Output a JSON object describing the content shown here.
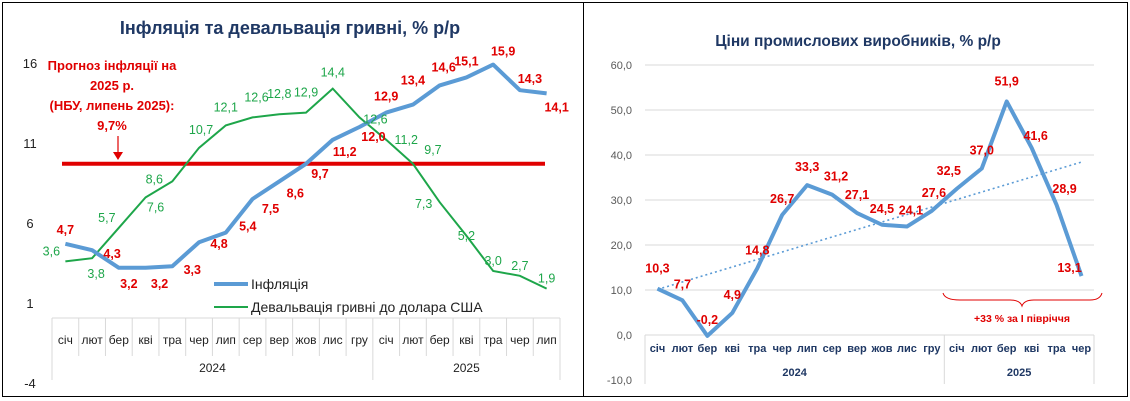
{
  "charts_meta": {
    "inflation_color": "#5b9bd5",
    "devaluation_color": "#1ea64a",
    "forecast_color": "#e00000",
    "label_color": "#e00000",
    "title_color": "#1f3864"
  },
  "chart_data": [
    {
      "type": "line",
      "title": "Інфляція та девальвація гривні, % р/р",
      "years": [
        "2024",
        "2025"
      ],
      "categories": [
        "січ",
        "лют",
        "бер",
        "кві",
        "тра",
        "чер",
        "лип",
        "сер",
        "вер",
        "жов",
        "лис",
        "гру",
        "січ",
        "лют",
        "бер",
        "кві",
        "тра",
        "чер",
        "лип"
      ],
      "year_spans": [
        12,
        7
      ],
      "yticks": [
        "16",
        "11",
        "6",
        "1",
        "-4"
      ],
      "ylim": [
        -4,
        16
      ],
      "series": [
        {
          "name": "Інфляція",
          "labels": [
            "4,7",
            "4,3",
            "3,2",
            "3,2",
            "3,3",
            "4,8",
            "5,4",
            "7,5",
            "8,6",
            "9,7",
            "11,2",
            "12,0",
            "12,9",
            "13,4",
            "14,6",
            "15,1",
            "15,9",
            "14,3",
            "14,1"
          ],
          "values": [
            4.7,
            4.3,
            3.2,
            3.2,
            3.3,
            4.8,
            5.4,
            7.5,
            8.6,
            9.7,
            11.2,
            12.0,
            12.9,
            13.4,
            14.6,
            15.1,
            15.9,
            14.3,
            14.1
          ]
        },
        {
          "name": "Девальвація гривні до долара США",
          "labels": [
            "3,6",
            "3,8",
            "5,7",
            "7,6",
            "8,6",
            "10,7",
            "12,1",
            "12,6",
            "12,8",
            "12,9",
            "14,4",
            "12,6",
            "11,2",
            "9,7",
            "7,3",
            "5,2",
            "3,0",
            "2,7",
            "1,9"
          ],
          "values": [
            3.6,
            3.8,
            5.7,
            7.6,
            8.6,
            10.7,
            12.1,
            12.6,
            12.8,
            12.9,
            14.4,
            12.6,
            11.2,
            9.7,
            7.3,
            5.2,
            3.0,
            2.7,
            1.9
          ]
        }
      ],
      "forecast": {
        "value": 9.7,
        "lines": [
          "Прогноз інфляції на",
          "2025 р.",
          "(НБУ, липень 2025):",
          "9,7%"
        ]
      },
      "legend": "bottom-right"
    },
    {
      "type": "line",
      "title": "Ціни промислових виробників, % р/р",
      "years": [
        "2024",
        "2025"
      ],
      "categories": [
        "січ",
        "лют",
        "бер",
        "кві",
        "тра",
        "чер",
        "лип",
        "сер",
        "вер",
        "жов",
        "лис",
        "гру",
        "січ",
        "лют",
        "бер",
        "кві",
        "тра",
        "чер"
      ],
      "year_spans": [
        12,
        6
      ],
      "yticks": [
        "60,0",
        "50,0",
        "40,0",
        "30,0",
        "20,0",
        "10,0",
        "0,0",
        "-10,0"
      ],
      "ylim": [
        -10,
        60
      ],
      "grid": true,
      "series": [
        {
          "name": "Ціни промислових виробників",
          "labels": [
            "10,3",
            "7,7",
            "-0,2",
            "4,9",
            "14,8",
            "26,7",
            "33,3",
            "31,2",
            "27,1",
            "24,5",
            "24,1",
            "27,6",
            "32,5",
            "37,0",
            "51,9",
            "41,6",
            "28,9",
            "13,1"
          ],
          "values": [
            10.3,
            7.7,
            -0.2,
            4.9,
            14.8,
            26.7,
            33.3,
            31.2,
            27.1,
            24.5,
            24.1,
            27.6,
            32.5,
            37.0,
            51.9,
            41.6,
            28.9,
            13.1
          ]
        }
      ],
      "trendline": "linear",
      "annotation": "+33 % за I півріччя"
    }
  ]
}
